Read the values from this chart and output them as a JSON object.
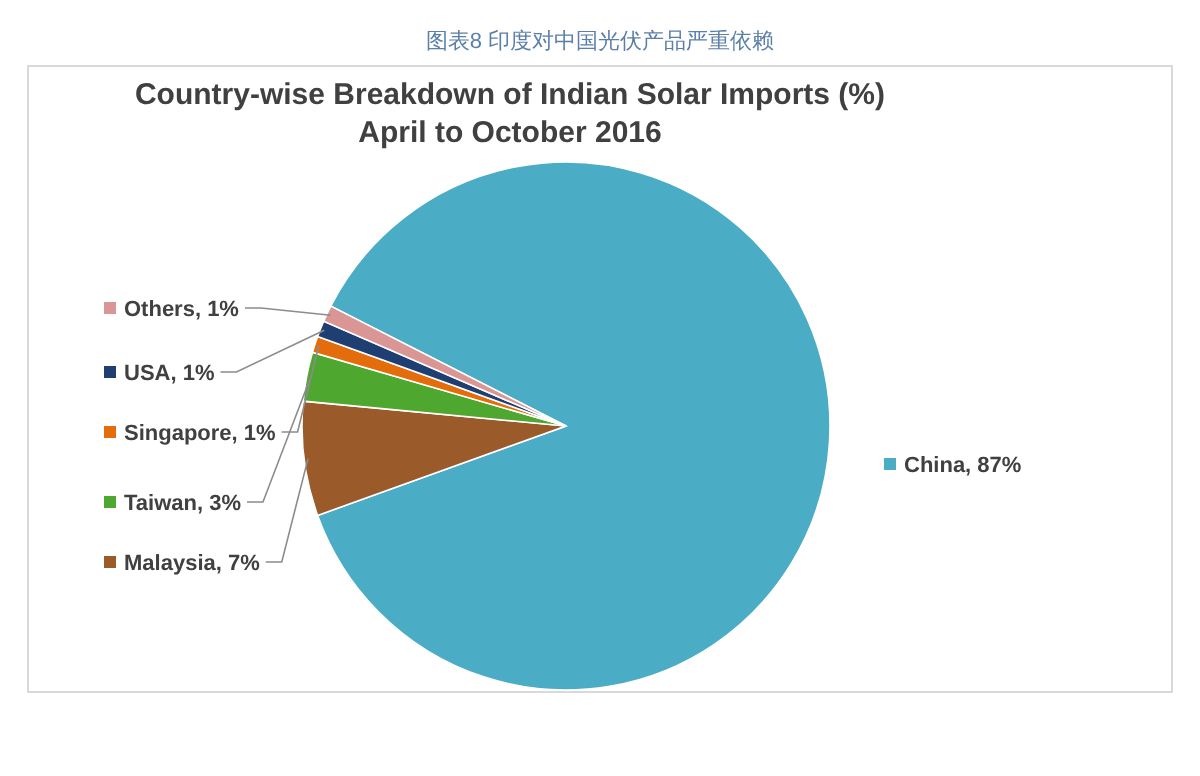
{
  "chart_data": {
    "type": "pie",
    "title": "图表8  印度对中国光伏产品严重依赖",
    "subtitle": "Country-wise Breakdown of Indian Solar Imports (%) April to October 2016",
    "categories": [
      "China",
      "Malaysia",
      "Taiwan",
      "Singapore",
      "USA",
      "Others"
    ],
    "values": [
      87,
      7,
      3,
      1,
      1,
      1
    ],
    "legend": "left",
    "value_labels": [
      "87%",
      "7%",
      "3%",
      "1%",
      "1%",
      "1%"
    ],
    "colors": [
      "#4bacc6",
      "#9a5a2a",
      "#4ea72e",
      "#e46c0a",
      "#1f3f73",
      "#d99694"
    ]
  }
}
